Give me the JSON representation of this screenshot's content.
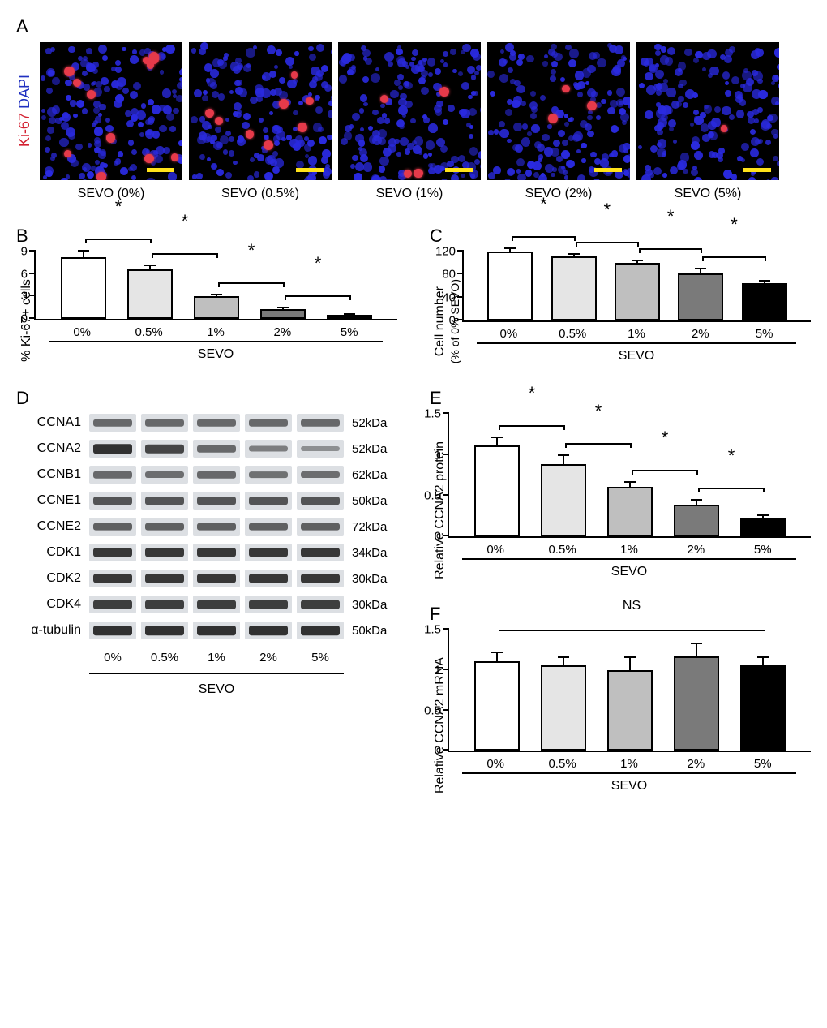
{
  "panelA": {
    "label": "A",
    "ylabel_red": "Ki-67",
    "ylabel_blue": "DAPI",
    "images": [
      {
        "caption": "SEVO (0%)",
        "ki67_spots": 12
      },
      {
        "caption": "SEVO (0.5%)",
        "ki67_spots": 8
      },
      {
        "caption": "SEVO (1%)",
        "ki67_spots": 4
      },
      {
        "caption": "SEVO (2%)",
        "ki67_spots": 3
      },
      {
        "caption": "SEVO (5%)",
        "ki67_spots": 1
      }
    ],
    "colors": {
      "ki67": "#e63a4a",
      "dapi": "#2a2ae0",
      "bg": "#000000",
      "scalebar": "#ffe21a"
    },
    "dapi_density": 170
  },
  "charts": {
    "categories": [
      "0%",
      "0.5%",
      "1%",
      "2%",
      "5%"
    ],
    "bar_colors": [
      "#ffffff",
      "#e5e5e5",
      "#bfbfbf",
      "#7a7a7a",
      "#000000"
    ],
    "xaxis_title": "SEVO",
    "star": "*",
    "ns": "NS"
  },
  "panelB": {
    "label": "B",
    "ylabel": "% Ki-67+ cells",
    "ylim": [
      0,
      9
    ],
    "yticks": [
      0,
      3,
      6,
      9
    ],
    "values": [
      6.8,
      5.5,
      2.5,
      1.1,
      0.4
    ],
    "errors": [
      0.8,
      0.5,
      0.3,
      0.2,
      0.2
    ],
    "sig_pairs": [
      [
        0,
        1
      ],
      [
        1,
        2
      ],
      [
        2,
        3
      ],
      [
        3,
        4
      ]
    ]
  },
  "panelC": {
    "label": "C",
    "ylabel_line1": "Cell number",
    "ylabel_line2": "(% of 0% SEVO)",
    "ylim": [
      0,
      120
    ],
    "yticks": [
      0,
      40,
      80,
      120
    ],
    "values": [
      100,
      93,
      84,
      69,
      55
    ],
    "errors": [
      6,
      5,
      4,
      8,
      4
    ],
    "sig_pairs": [
      [
        0,
        1
      ],
      [
        1,
        2
      ],
      [
        2,
        3
      ],
      [
        3,
        4
      ]
    ]
  },
  "panelD": {
    "label": "D",
    "rows": [
      {
        "name": "CCNA1",
        "mw": "52kDa",
        "intensities": [
          0.55,
          0.55,
          0.55,
          0.55,
          0.55
        ]
      },
      {
        "name": "CCNA2",
        "mw": "52kDa",
        "intensities": [
          0.95,
          0.8,
          0.55,
          0.38,
          0.25
        ]
      },
      {
        "name": "CCNB1",
        "mw": "62kDa",
        "intensities": [
          0.55,
          0.5,
          0.55,
          0.48,
          0.5
        ]
      },
      {
        "name": "CCNE1",
        "mw": "50kDa",
        "intensities": [
          0.7,
          0.7,
          0.7,
          0.7,
          0.7
        ]
      },
      {
        "name": "CCNE2",
        "mw": "72kDa",
        "intensities": [
          0.6,
          0.6,
          0.6,
          0.6,
          0.6
        ]
      },
      {
        "name": "CDK1",
        "mw": "34kDa",
        "intensities": [
          0.9,
          0.9,
          0.9,
          0.9,
          0.9
        ]
      },
      {
        "name": "CDK2",
        "mw": "30kDa",
        "intensities": [
          0.9,
          0.9,
          0.9,
          0.9,
          0.9
        ]
      },
      {
        "name": "CDK4",
        "mw": "30kDa",
        "intensities": [
          0.85,
          0.85,
          0.85,
          0.85,
          0.85
        ]
      },
      {
        "name": "α-tubulin",
        "mw": "50kDa",
        "intensities": [
          0.95,
          0.95,
          0.95,
          0.95,
          0.95
        ]
      }
    ],
    "categories": [
      "0%",
      "0.5%",
      "1%",
      "2%",
      "5%"
    ],
    "xaxis_title": "SEVO",
    "lane_bg": "#dcdfe3",
    "band_color": "#2a2a2a"
  },
  "panelE": {
    "label": "E",
    "ylabel": "Relative CCNA2 protein",
    "ylim": [
      0,
      1.5
    ],
    "yticks": [
      0,
      0.5,
      1,
      1.5
    ],
    "values": [
      1.0,
      0.8,
      0.55,
      0.35,
      0.2
    ],
    "errors": [
      0.1,
      0.1,
      0.06,
      0.06,
      0.04
    ],
    "sig_pairs": [
      [
        0,
        1
      ],
      [
        1,
        2
      ],
      [
        2,
        3
      ],
      [
        3,
        4
      ]
    ]
  },
  "panelF": {
    "label": "F",
    "ylabel": "Relative CCNA2 mRNA",
    "ylim": [
      0,
      1.5
    ],
    "yticks": [
      0,
      0.5,
      1,
      1.5
    ],
    "values": [
      1.0,
      0.95,
      0.9,
      1.05,
      0.95
    ],
    "errors": [
      0.1,
      0.1,
      0.15,
      0.15,
      0.1
    ],
    "ns_span": [
      0,
      4
    ]
  }
}
